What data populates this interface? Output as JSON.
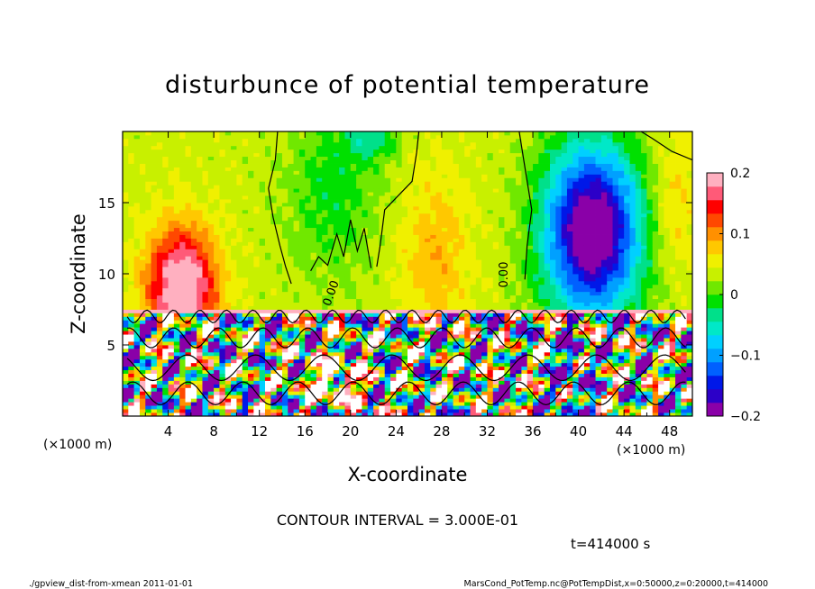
{
  "chart_data": {
    "type": "heatmap",
    "title": "disturbunce of potential temperature",
    "xlabel": "X-coordinate",
    "ylabel": "Z-coordinate",
    "x_unit_label": "(×1000 m)",
    "z_unit_label": "(×1000 m)",
    "xlim": [
      0,
      50
    ],
    "zlim": [
      0,
      20
    ],
    "x_ticks": [
      "4",
      "8",
      "12",
      "16",
      "20",
      "24",
      "28",
      "32",
      "36",
      "40",
      "44",
      "48"
    ],
    "x_tick_values": [
      4,
      8,
      12,
      16,
      20,
      24,
      28,
      32,
      36,
      40,
      44,
      48
    ],
    "z_ticks": [
      "5",
      "10",
      "15"
    ],
    "z_tick_values": [
      5,
      10,
      15
    ],
    "colorbar": {
      "range": [
        -0.2,
        0.2
      ],
      "tick_labels": [
        "0.2",
        "0.1",
        "0",
        "−0.1",
        "−0.2"
      ],
      "tick_values": [
        0.2,
        0.1,
        0,
        -0.1,
        -0.2
      ],
      "colors": [
        "#8a00a8",
        "#2c00c8",
        "#0018e8",
        "#0060ff",
        "#00a0ff",
        "#00d0ff",
        "#00e8c8",
        "#00e08a",
        "#00e000",
        "#70e800",
        "#c8f000",
        "#f0f000",
        "#ffc800",
        "#ff9000",
        "#ff4800",
        "#ff0000",
        "#ff5a78",
        "#ffb0c0"
      ]
    },
    "contour_labels": [
      "0.00",
      "0.00"
    ],
    "grid": false,
    "legend": "colorbar-right"
  },
  "annotations": {
    "contour_interval": "CONTOUR INTERVAL = 3.000E-01",
    "time": "t=414000 s",
    "footer_left": "./gpview_dist-from-xmean  2011-01-01",
    "footer_right": "MarsCond_PotTemp.nc@PotTempDist,x=0:50000,z=0:20000,t=414000"
  }
}
